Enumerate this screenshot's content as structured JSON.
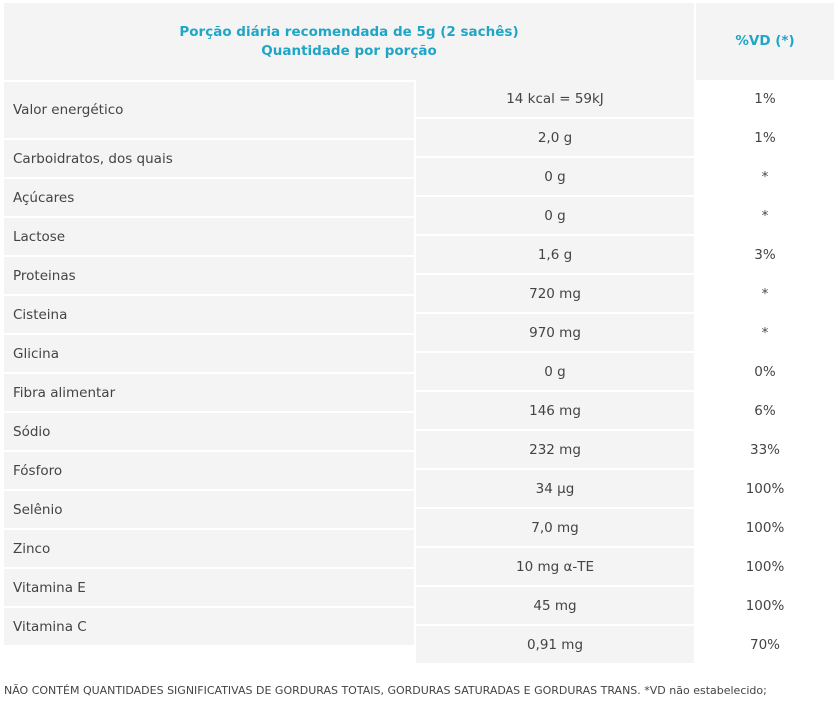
{
  "header": {
    "portion_line1": "Porção diária recomendada de 5g (2 sachês)",
    "portion_line2": "Quantidade por porção",
    "vd_label": "%VD (*)"
  },
  "rows": [
    {
      "name": "Valor energético",
      "amount": "14 kcal = 59kJ",
      "vd": "1%"
    },
    {
      "name": "Carboidratos, dos quais",
      "amount": "2,0 g",
      "vd": "1%"
    },
    {
      "name": "Açúcares",
      "amount": "0 g",
      "vd": "*"
    },
    {
      "name": "Lactose",
      "amount": "0 g",
      "vd": "*"
    },
    {
      "name": "Proteinas",
      "amount": "1,6 g",
      "vd": "3%"
    },
    {
      "name": "Cisteina",
      "amount": "720 mg",
      "vd": "*"
    },
    {
      "name": "Glicina",
      "amount": "970 mg",
      "vd": "*"
    },
    {
      "name": "Fibra alimentar",
      "amount": "0 g",
      "vd": "0%"
    },
    {
      "name": "Sódio",
      "amount": "146 mg",
      "vd": "6%"
    },
    {
      "name": "Fósforo",
      "amount": "232 mg",
      "vd": "33%"
    },
    {
      "name": "Selênio",
      "amount": "34 µg",
      "vd": "100%"
    },
    {
      "name": "Zinco",
      "amount": "7,0 mg",
      "vd": "100%"
    },
    {
      "name": "Vitamina E",
      "amount": "10 mg α-TE",
      "vd": "100%"
    },
    {
      "name": "Vitamina C",
      "amount": "45 mg",
      "vd": "100%"
    },
    {
      "name": "",
      "amount": "0,91 mg",
      "vd": "70%"
    }
  ],
  "footnote": "NÃO CONTÉM QUANTIDADES SIGNIFICATIVAS DE GORDURAS TOTAIS, GORDURAS SATURADAS E GORDURAS TRANS. *VD não estabelecido;",
  "colors": {
    "header_text": "#1fa6c6",
    "cell_bg": "#f4f4f4",
    "body_text": "#444444"
  }
}
